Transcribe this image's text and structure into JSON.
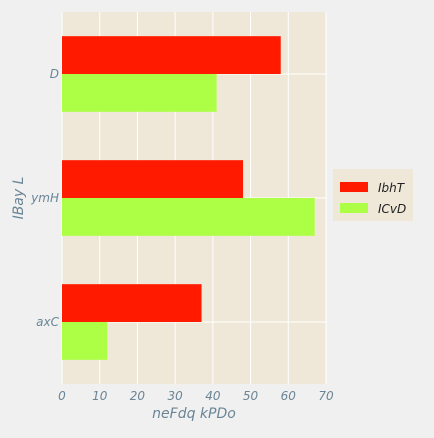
{
  "chart_data": {
    "type": "bar",
    "orientation": "horizontal",
    "title": "",
    "xlabel": "neFdq kPDo",
    "ylabel": "IBay L",
    "categories": [
      "axC",
      "ymH",
      "D"
    ],
    "series": [
      {
        "name": "IbhT",
        "color": "#ff1a00",
        "values": [
          37,
          48,
          58
        ]
      },
      {
        "name": "ICvD",
        "color": "#adff45",
        "values": [
          12,
          67,
          41
        ]
      }
    ],
    "xlim": [
      0,
      70
    ],
    "xticks": [
      0,
      10,
      20,
      30,
      40,
      50,
      60,
      70
    ],
    "grid": true,
    "legend_position": "right",
    "colors": {
      "plot_background": "#efe8d8",
      "figure_background": "#f0f0f0",
      "grid": "#ffffff",
      "text": "#6a8596"
    }
  }
}
